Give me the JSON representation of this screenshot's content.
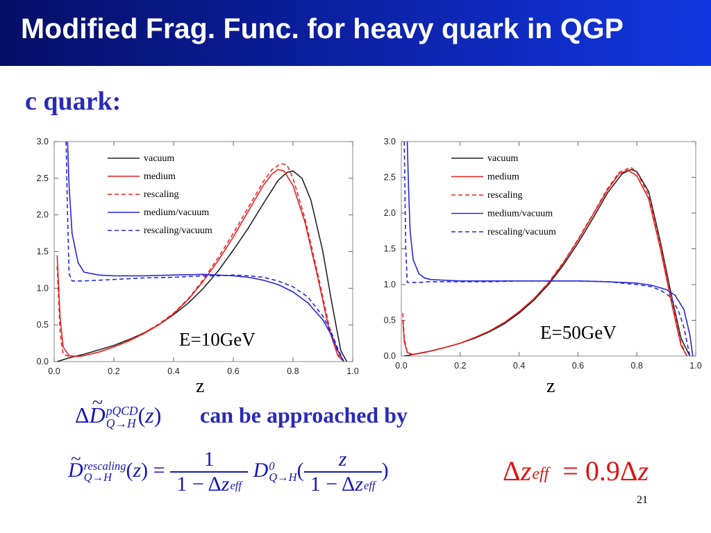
{
  "slide": {
    "title": "Modified Frag. Func. for heavy quark in QGP",
    "subheading": "c quark:",
    "approached_text": "can be approached by",
    "page_number": "21"
  },
  "equations": {
    "left_D_sup": "pQCD",
    "left_D_sub": "Q→H",
    "rescaling_sup": "rescaling",
    "rescaling_sub": "Q→H",
    "D0_sup": "0",
    "D0_sub": "Q→H",
    "eff_sub": "eff",
    "relation_value": "0.9"
  },
  "chart_data": [
    {
      "type": "line",
      "annotation": "E=10GeV",
      "xlabel": "z",
      "xlim": [
        0,
        1
      ],
      "ylim": [
        0,
        3
      ],
      "xticks": [
        "0.0",
        "0.2",
        "0.4",
        "0.6",
        "0.8",
        "1.0"
      ],
      "yticks": [
        "0.0",
        "0.5",
        "1.0",
        "1.5",
        "2.0",
        "2.5",
        "3.0"
      ],
      "legend_position": "top-center",
      "series": [
        {
          "name": "vacuum",
          "color": "#222222",
          "dash": false,
          "x": [
            0.01,
            0.05,
            0.1,
            0.15,
            0.2,
            0.25,
            0.3,
            0.35,
            0.4,
            0.45,
            0.5,
            0.55,
            0.6,
            0.65,
            0.7,
            0.75,
            0.78,
            0.8,
            0.83,
            0.86,
            0.9,
            0.93,
            0.96,
            0.98
          ],
          "y": [
            0.0,
            0.05,
            0.1,
            0.16,
            0.22,
            0.3,
            0.39,
            0.5,
            0.64,
            0.8,
            1.0,
            1.24,
            1.52,
            1.82,
            2.15,
            2.47,
            2.58,
            2.6,
            2.5,
            2.2,
            1.5,
            0.8,
            0.15,
            0.0
          ]
        },
        {
          "name": "medium",
          "color": "#e82020",
          "dash": false,
          "x": [
            0.01,
            0.02,
            0.03,
            0.05,
            0.08,
            0.1,
            0.15,
            0.2,
            0.25,
            0.3,
            0.35,
            0.4,
            0.45,
            0.5,
            0.55,
            0.6,
            0.65,
            0.7,
            0.73,
            0.75,
            0.77,
            0.8,
            0.84,
            0.88,
            0.92,
            0.95,
            0.97
          ],
          "y": [
            1.45,
            0.6,
            0.2,
            0.08,
            0.07,
            0.08,
            0.13,
            0.2,
            0.28,
            0.38,
            0.5,
            0.65,
            0.85,
            1.1,
            1.38,
            1.7,
            2.05,
            2.4,
            2.56,
            2.62,
            2.6,
            2.4,
            1.9,
            1.2,
            0.45,
            0.08,
            0.0
          ]
        },
        {
          "name": "rescaling",
          "color": "#e82020",
          "dash": true,
          "x": [
            0.01,
            0.02,
            0.03,
            0.05,
            0.08,
            0.1,
            0.15,
            0.2,
            0.25,
            0.3,
            0.35,
            0.4,
            0.45,
            0.5,
            0.55,
            0.6,
            0.65,
            0.7,
            0.73,
            0.76,
            0.78,
            0.8,
            0.84,
            0.88,
            0.92,
            0.95,
            0.97
          ],
          "y": [
            1.3,
            0.4,
            0.1,
            0.07,
            0.07,
            0.08,
            0.13,
            0.2,
            0.29,
            0.39,
            0.51,
            0.66,
            0.86,
            1.12,
            1.42,
            1.75,
            2.1,
            2.45,
            2.62,
            2.7,
            2.68,
            2.5,
            1.95,
            1.25,
            0.5,
            0.1,
            0.0
          ]
        },
        {
          "name": "medium/vacuum",
          "color": "#2525e0",
          "dash": false,
          "x": [
            0.045,
            0.05,
            0.06,
            0.08,
            0.1,
            0.15,
            0.2,
            0.3,
            0.4,
            0.5,
            0.6,
            0.65,
            0.7,
            0.75,
            0.8,
            0.85,
            0.9,
            0.93,
            0.95,
            0.97
          ],
          "y": [
            3.0,
            2.4,
            1.75,
            1.35,
            1.22,
            1.18,
            1.17,
            1.17,
            1.18,
            1.19,
            1.17,
            1.15,
            1.11,
            1.05,
            0.95,
            0.8,
            0.57,
            0.35,
            0.15,
            0.0
          ]
        },
        {
          "name": "rescaling/vacuum",
          "color": "#2525e0",
          "dash": true,
          "x": [
            0.04,
            0.045,
            0.05,
            0.06,
            0.1,
            0.2,
            0.3,
            0.4,
            0.5,
            0.55,
            0.6,
            0.65,
            0.7,
            0.75,
            0.8,
            0.85,
            0.9,
            0.93,
            0.95,
            0.97
          ],
          "y": [
            3.0,
            2.0,
            1.2,
            1.1,
            1.1,
            1.12,
            1.14,
            1.15,
            1.17,
            1.17,
            1.18,
            1.17,
            1.15,
            1.1,
            1.02,
            0.88,
            0.62,
            0.38,
            0.18,
            0.0
          ]
        }
      ]
    },
    {
      "type": "line",
      "annotation": "E=50GeV",
      "xlabel": "z",
      "xlim": [
        0,
        1
      ],
      "ylim": [
        0,
        3
      ],
      "xticks": [
        "0.0",
        "0.2",
        "0.4",
        "0.6",
        "0.8",
        "1.0"
      ],
      "yticks": [
        "0.0",
        "0.5",
        "1.0",
        "1.5",
        "2.0",
        "2.5",
        "3.0"
      ],
      "legend_position": "top-center",
      "series": [
        {
          "name": "vacuum",
          "color": "#222222",
          "dash": false,
          "x": [
            0.01,
            0.05,
            0.1,
            0.15,
            0.2,
            0.25,
            0.3,
            0.35,
            0.4,
            0.45,
            0.5,
            0.55,
            0.6,
            0.65,
            0.7,
            0.75,
            0.78,
            0.8,
            0.84,
            0.88,
            0.92,
            0.95,
            0.98
          ],
          "y": [
            0.0,
            0.03,
            0.07,
            0.12,
            0.18,
            0.25,
            0.34,
            0.45,
            0.6,
            0.78,
            1.0,
            1.27,
            1.58,
            1.92,
            2.28,
            2.55,
            2.61,
            2.58,
            2.3,
            1.6,
            0.8,
            0.25,
            0.0
          ]
        },
        {
          "name": "medium",
          "color": "#e82020",
          "dash": false,
          "x": [
            0.005,
            0.01,
            0.02,
            0.04,
            0.08,
            0.1,
            0.15,
            0.2,
            0.25,
            0.3,
            0.35,
            0.4,
            0.45,
            0.5,
            0.55,
            0.6,
            0.65,
            0.7,
            0.74,
            0.77,
            0.8,
            0.84,
            0.88,
            0.92,
            0.95,
            0.97
          ],
          "y": [
            0.5,
            0.2,
            0.05,
            0.02,
            0.05,
            0.07,
            0.12,
            0.18,
            0.26,
            0.35,
            0.47,
            0.62,
            0.8,
            1.02,
            1.3,
            1.62,
            1.97,
            2.32,
            2.55,
            2.6,
            2.52,
            2.2,
            1.5,
            0.7,
            0.15,
            0.0
          ]
        },
        {
          "name": "rescaling",
          "color": "#e82020",
          "dash": true,
          "x": [
            0.005,
            0.01,
            0.02,
            0.04,
            0.08,
            0.1,
            0.15,
            0.2,
            0.25,
            0.3,
            0.35,
            0.4,
            0.45,
            0.5,
            0.55,
            0.6,
            0.65,
            0.7,
            0.74,
            0.78,
            0.8,
            0.84,
            0.88,
            0.92,
            0.95,
            0.97
          ],
          "y": [
            0.6,
            0.25,
            0.05,
            0.02,
            0.05,
            0.07,
            0.12,
            0.18,
            0.26,
            0.35,
            0.47,
            0.62,
            0.8,
            1.03,
            1.31,
            1.63,
            1.98,
            2.34,
            2.57,
            2.64,
            2.57,
            2.25,
            1.55,
            0.75,
            0.18,
            0.0
          ]
        },
        {
          "name": "medium/vacuum",
          "color": "#2525e0",
          "dash": false,
          "x": [
            0.02,
            0.025,
            0.03,
            0.04,
            0.06,
            0.08,
            0.1,
            0.15,
            0.2,
            0.3,
            0.4,
            0.5,
            0.6,
            0.7,
            0.8,
            0.85,
            0.9,
            0.93,
            0.96,
            0.98,
            0.99
          ],
          "y": [
            3.0,
            2.3,
            1.75,
            1.35,
            1.15,
            1.09,
            1.07,
            1.06,
            1.05,
            1.05,
            1.05,
            1.05,
            1.05,
            1.04,
            1.02,
            0.99,
            0.93,
            0.85,
            0.65,
            0.3,
            0.0
          ]
        },
        {
          "name": "rescaling/vacuum",
          "color": "#2525e0",
          "dash": true,
          "x": [
            0.01,
            0.015,
            0.02,
            0.03,
            0.06,
            0.1,
            0.2,
            0.3,
            0.4,
            0.5,
            0.6,
            0.7,
            0.8,
            0.85,
            0.88,
            0.91,
            0.94,
            0.96,
            0.98
          ],
          "y": [
            3.0,
            1.5,
            1.03,
            1.03,
            1.03,
            1.04,
            1.04,
            1.04,
            1.05,
            1.05,
            1.05,
            1.04,
            1.0,
            0.97,
            0.92,
            0.84,
            0.65,
            0.4,
            0.0
          ]
        }
      ]
    }
  ]
}
